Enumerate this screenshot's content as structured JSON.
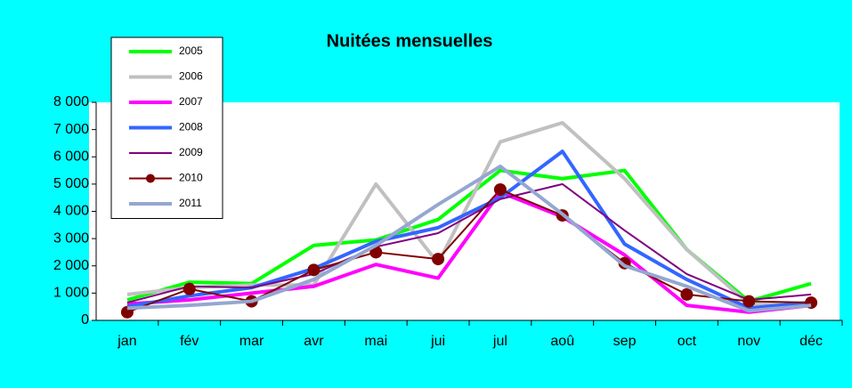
{
  "chart_data": {
    "type": "line",
    "title": "Nuitées mensuelles",
    "categories": [
      "jan",
      "fév",
      "mar",
      "avr",
      "mai",
      "jui",
      "jul",
      "aoû",
      "sep",
      "oct",
      "nov",
      "déc"
    ],
    "ylim": [
      0,
      8000
    ],
    "yticks": [
      {
        "value": 0,
        "label": "0"
      },
      {
        "value": 1000,
        "label": "1 000"
      },
      {
        "value": 2000,
        "label": "2 000"
      },
      {
        "value": 3000,
        "label": "3 000"
      },
      {
        "value": 4000,
        "label": "4 000"
      },
      {
        "value": 5000,
        "label": "5 000"
      },
      {
        "value": 6000,
        "label": "6 000"
      },
      {
        "value": 7000,
        "label": "7 000"
      },
      {
        "value": 8000,
        "label": "8 000"
      }
    ],
    "grid": false,
    "legend": "top-left",
    "series": [
      {
        "name": "2005",
        "color": "#00ff00",
        "width": 4,
        "values": [
          750,
          1400,
          1350,
          2750,
          2950,
          3700,
          5500,
          5200,
          5500,
          2600,
          700,
          1350
        ]
      },
      {
        "name": "2006",
        "color": "#c0c0c0",
        "width": 4,
        "values": [
          950,
          1200,
          1300,
          1300,
          5000,
          2100,
          6550,
          7250,
          5200,
          2600,
          600,
          650
        ]
      },
      {
        "name": "2007",
        "color": "#ff00ff",
        "width": 4,
        "values": [
          600,
          750,
          1000,
          1250,
          2050,
          1550,
          4700,
          3800,
          2400,
          550,
          300,
          550
        ]
      },
      {
        "name": "2008",
        "color": "#3366ff",
        "width": 4,
        "values": [
          500,
          900,
          1200,
          1900,
          2900,
          3400,
          4500,
          6200,
          2800,
          1500,
          450,
          650
        ]
      },
      {
        "name": "2009",
        "color": "#800080",
        "width": 2,
        "values": [
          650,
          1250,
          1200,
          1700,
          2700,
          3200,
          4450,
          5000,
          3300,
          1700,
          750,
          950
        ]
      },
      {
        "name": "2010",
        "color": "#800000",
        "width": 2,
        "marker": "circle",
        "values": [
          300,
          1150,
          700,
          1850,
          2500,
          2250,
          4800,
          3850,
          2100,
          950,
          700,
          650
        ]
      },
      {
        "name": "2011",
        "color": "#94a7d0",
        "width": 4,
        "values": [
          450,
          550,
          700,
          1500,
          2750,
          4250,
          5650,
          3900,
          2000,
          1250,
          350,
          550
        ]
      }
    ]
  }
}
